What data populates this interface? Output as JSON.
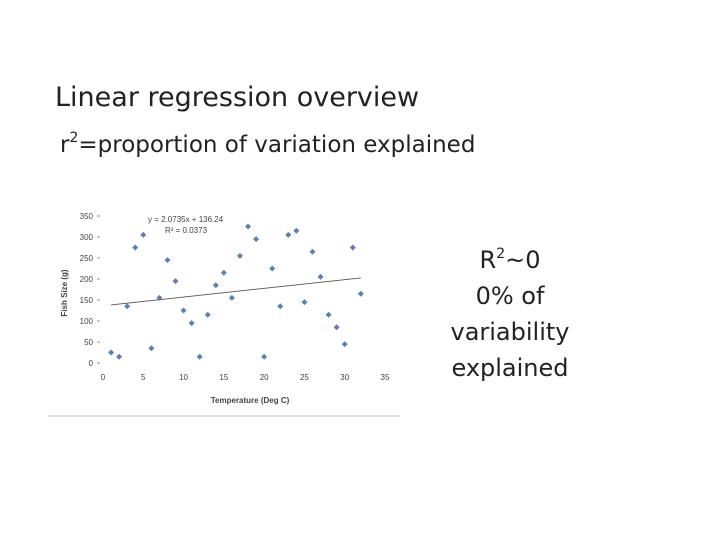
{
  "slide": {
    "title": "Linear regression overview",
    "subtitle_prefix": "r",
    "subtitle_sup": "2",
    "subtitle_rest": "=proportion of variation explained",
    "note": {
      "line1_prefix": "R",
      "line1_sup": "2",
      "line1_rest": "~0",
      "line2": "0% of",
      "line3": "variability",
      "line4": "explained"
    }
  },
  "colors": {
    "marker": "#5b7fb6",
    "trendline": "#555555",
    "axis_text": "#444444",
    "gridline": "#bfbfbf"
  },
  "chart_data": {
    "type": "scatter",
    "xlabel": "Temperature (Deg C)",
    "ylabel": "Fish Size (g)",
    "xlim": [
      0,
      35
    ],
    "ylim": [
      0,
      350
    ],
    "x_ticks": [
      0,
      5,
      10,
      15,
      20,
      25,
      30,
      35
    ],
    "y_ticks": [
      0,
      50,
      100,
      150,
      200,
      250,
      300,
      350
    ],
    "equation": "y = 2.0735x + 136.24",
    "r2_text": "R² = 0.0373",
    "trendline": {
      "slope": 2.0735,
      "intercept": 136.24,
      "x_range": [
        1,
        32
      ]
    },
    "series": [
      {
        "marker": "diamond",
        "points": [
          [
            1,
            25
          ],
          [
            2,
            15
          ],
          [
            3,
            135
          ],
          [
            4,
            275
          ],
          [
            5,
            305
          ],
          [
            6,
            35
          ],
          [
            7,
            155
          ],
          [
            8,
            245
          ],
          [
            9,
            195
          ],
          [
            10,
            125
          ],
          [
            11,
            95
          ],
          [
            12,
            15
          ],
          [
            13,
            115
          ],
          [
            14,
            185
          ],
          [
            15,
            215
          ],
          [
            16,
            155
          ],
          [
            17,
            255
          ],
          [
            18,
            325
          ],
          [
            19,
            295
          ],
          [
            20,
            15
          ],
          [
            21,
            225
          ],
          [
            22,
            135
          ],
          [
            23,
            305
          ],
          [
            24,
            315
          ],
          [
            25,
            145
          ],
          [
            26,
            265
          ],
          [
            27,
            205
          ],
          [
            28,
            115
          ],
          [
            29,
            85
          ],
          [
            30,
            45
          ],
          [
            31,
            275
          ],
          [
            32,
            165
          ]
        ]
      }
    ]
  }
}
